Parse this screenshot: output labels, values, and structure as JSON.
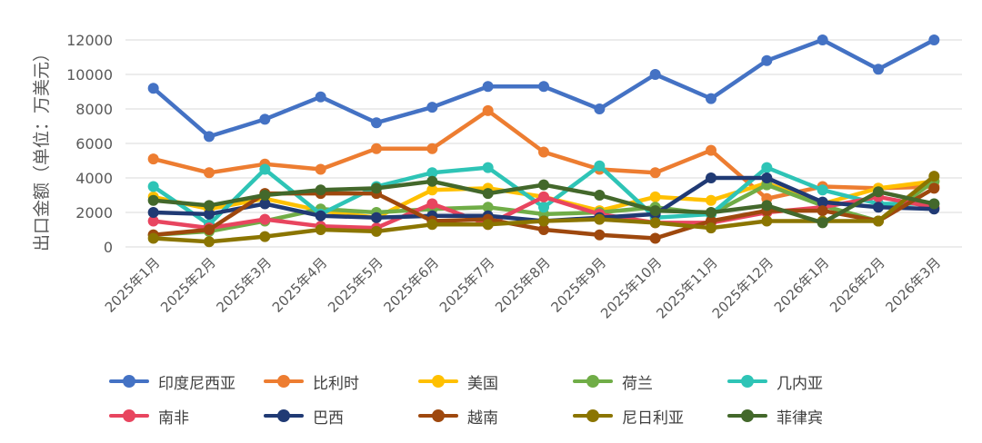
{
  "chart_data": {
    "type": "line",
    "title": "",
    "xlabel": "",
    "ylabel": "出口金额（单位：万美元）",
    "ylim": [
      0,
      12000
    ],
    "yticks": [
      0,
      2000,
      4000,
      6000,
      8000,
      10000,
      12000
    ],
    "grid": true,
    "legend_position": "bottom",
    "categories": [
      "2025年1月",
      "2025年2月",
      "2025年3月",
      "2025年4月",
      "2025年5月",
      "2025年6月",
      "2025年7月",
      "2025年8月",
      "2025年9月",
      "2025年10月",
      "2025年11月",
      "2025年12月",
      "2026年1月",
      "2026年2月",
      "2026年3月"
    ],
    "series": [
      {
        "name": "印度尼西亚",
        "color": "#4472C4",
        "values": [
          9200,
          6400,
          7400,
          8700,
          7200,
          8100,
          9300,
          9300,
          8000,
          10000,
          8600,
          10800,
          12000,
          10300,
          12000
        ]
      },
      {
        "name": "比利时",
        "color": "#ED7D31",
        "values": [
          5100,
          4300,
          4800,
          4500,
          5700,
          5700,
          7900,
          5500,
          4500,
          4300,
          5600,
          2800,
          3500,
          3400,
          3500
        ]
      },
      {
        "name": "美国",
        "color": "#FFC000",
        "values": [
          2900,
          2200,
          2800,
          2100,
          1700,
          3300,
          3400,
          2900,
          2100,
          2900,
          2700,
          3700,
          2500,
          3400,
          3800
        ]
      },
      {
        "name": "荷兰",
        "color": "#70AD47",
        "values": [
          700,
          900,
          1500,
          2200,
          2000,
          2200,
          2300,
          1900,
          2000,
          2300,
          1900,
          3600,
          2400,
          1500,
          3800
        ]
      },
      {
        "name": "几内亚",
        "color": "#2EC4B6",
        "values": [
          3500,
          1300,
          4500,
          1900,
          3500,
          4300,
          4600,
          2300,
          4700,
          1700,
          1900,
          4600,
          3300,
          2500,
          2500
        ]
      },
      {
        "name": "南非",
        "color": "#E8455F",
        "values": [
          1500,
          1100,
          1600,
          1200,
          1100,
          2500,
          1300,
          2900,
          1900,
          1400,
          1400,
          2000,
          2300,
          2900,
          2300
        ]
      },
      {
        "name": "巴西",
        "color": "#203A74",
        "values": [
          2000,
          1900,
          2500,
          1800,
          1700,
          1800,
          1800,
          1500,
          1700,
          1900,
          4000,
          4000,
          2600,
          2300,
          2200
        ]
      },
      {
        "name": "越南",
        "color": "#9E480E",
        "values": [
          700,
          1000,
          3100,
          3100,
          3100,
          1500,
          1600,
          1000,
          700,
          500,
          1500,
          2100,
          2100,
          1500,
          3400
        ]
      },
      {
        "name": "尼日利亚",
        "color": "#8B7500",
        "values": [
          500,
          300,
          600,
          1000,
          900,
          1300,
          1300,
          1500,
          1600,
          1400,
          1100,
          1500,
          1500,
          1500,
          4100
        ]
      },
      {
        "name": "菲律宾",
        "color": "#43682B",
        "values": [
          2700,
          2400,
          3000,
          3300,
          3400,
          3800,
          3100,
          3600,
          3000,
          2100,
          2000,
          2400,
          1400,
          3200,
          2500
        ]
      }
    ]
  }
}
